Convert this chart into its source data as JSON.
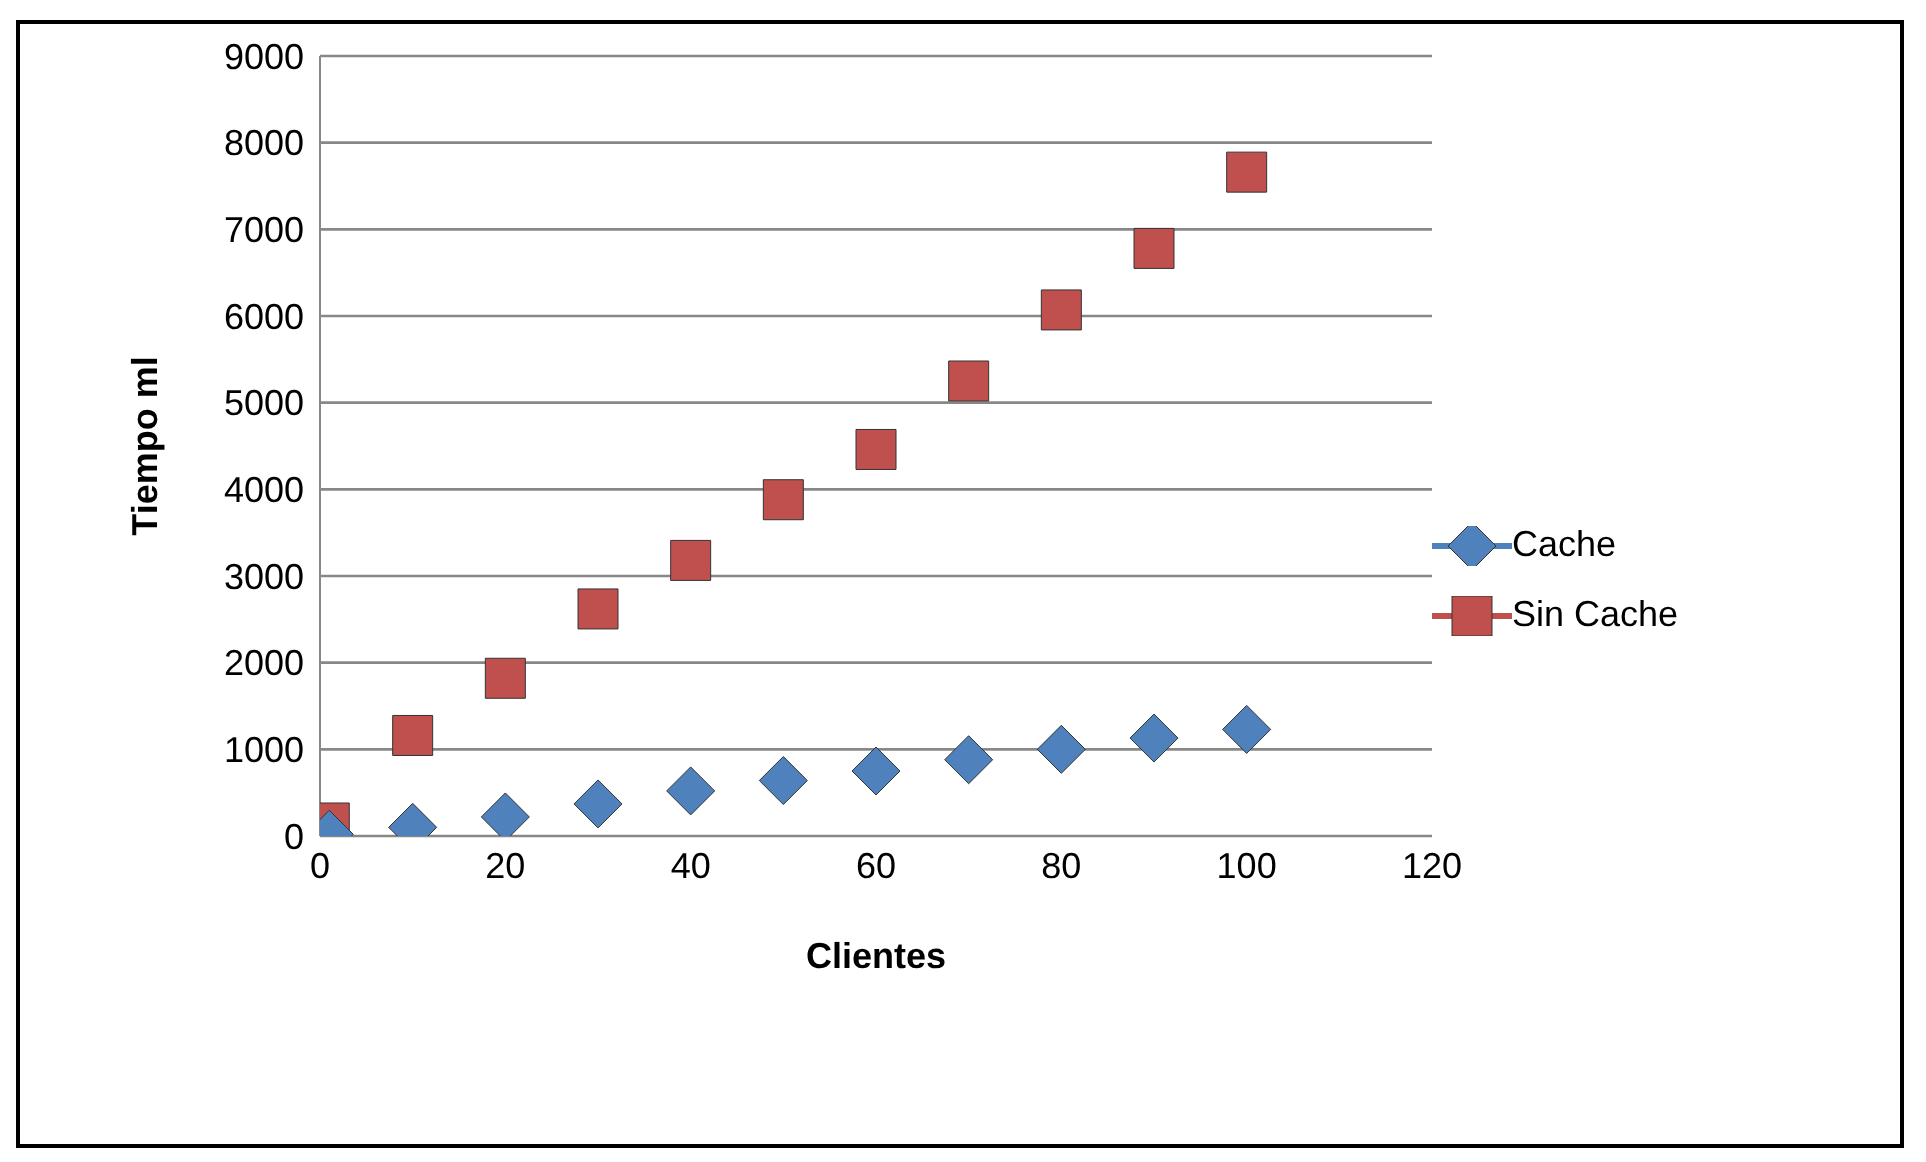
{
  "chart_data": {
    "type": "scatter",
    "xlabel": "Clientes",
    "ylabel": "Tiempo ml",
    "xlim": [
      0,
      120
    ],
    "xticks": [
      0,
      20,
      40,
      60,
      80,
      100,
      120
    ],
    "ylim": [
      0,
      9000
    ],
    "yticks": [
      0,
      1000,
      2000,
      3000,
      4000,
      5000,
      6000,
      7000,
      8000,
      9000
    ],
    "grid": "y",
    "legend": "right",
    "series": [
      {
        "name": "Cache",
        "color": "#4f81bd",
        "marker": "diamond",
        "x": [
          1,
          10,
          20,
          30,
          40,
          50,
          60,
          70,
          80,
          90,
          100
        ],
        "values": [
          20,
          100,
          220,
          370,
          520,
          640,
          750,
          880,
          1000,
          1130,
          1230
        ]
      },
      {
        "name": "Sin Cache",
        "color": "#c0504d",
        "marker": "square",
        "x": [
          1,
          10,
          20,
          30,
          40,
          50,
          60,
          70,
          80,
          90,
          100
        ],
        "values": [
          150,
          1160,
          1820,
          2620,
          3180,
          3880,
          4460,
          5250,
          6070,
          6780,
          7660
        ]
      }
    ]
  }
}
